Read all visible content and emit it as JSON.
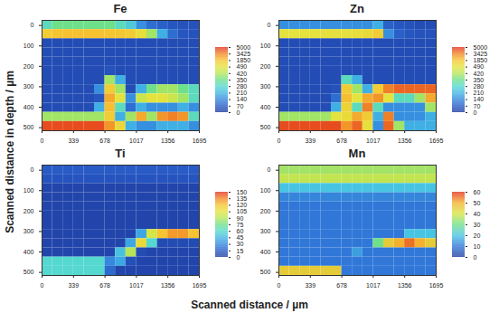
{
  "chart_data": {
    "type": "heatmap",
    "xlabel": "Scanned distance / µm",
    "ylabel": "Scanned distance in depth / µm",
    "xlim": [
      0,
      1695
    ],
    "ylim": [
      -25,
      515
    ],
    "xticks": [
      0,
      339,
      678,
      1017,
      1356,
      1695
    ],
    "yticks": [
      0,
      100,
      200,
      300,
      400,
      500
    ],
    "x_bins": [
      0,
      113,
      226,
      339,
      452,
      565,
      678,
      791,
      904,
      1017,
      1130,
      1243,
      1356,
      1469,
      1582,
      1695
    ],
    "y_bins": [
      -25,
      20,
      65,
      110,
      155,
      200,
      245,
      290,
      335,
      380,
      425,
      470,
      515
    ],
    "panels": [
      {
        "title": "Fe",
        "colorbar_ticks": [
          0,
          70,
          140,
          210,
          280,
          350,
          420,
          490,
          1850,
          3425,
          5000
        ],
        "cells": [
          [
            300,
            350,
            350,
            350,
            350,
            350,
            350,
            300,
            250,
            150,
            100,
            80,
            60,
            50,
            50
          ],
          [
            1500,
            1800,
            1900,
            1900,
            1900,
            1900,
            1800,
            1700,
            1500,
            700,
            400,
            200,
            100,
            60,
            50
          ],
          [
            40,
            40,
            40,
            40,
            40,
            40,
            40,
            40,
            40,
            40,
            40,
            40,
            40,
            40,
            40
          ],
          [
            40,
            40,
            40,
            40,
            40,
            40,
            40,
            40,
            40,
            40,
            40,
            40,
            40,
            40,
            40
          ],
          [
            40,
            40,
            40,
            40,
            40,
            40,
            40,
            40,
            40,
            40,
            40,
            40,
            40,
            40,
            40
          ],
          [
            40,
            40,
            40,
            40,
            40,
            40,
            50,
            40,
            40,
            40,
            40,
            40,
            40,
            40,
            40
          ],
          [
            40,
            40,
            40,
            40,
            40,
            40,
            400,
            200,
            40,
            40,
            40,
            40,
            40,
            40,
            40
          ],
          [
            40,
            40,
            40,
            40,
            40,
            150,
            1500,
            400,
            40,
            200,
            350,
            400,
            400,
            350,
            300
          ],
          [
            40,
            40,
            40,
            40,
            40,
            60,
            2500,
            500,
            150,
            450,
            500,
            500,
            450,
            400,
            300
          ],
          [
            40,
            40,
            40,
            40,
            40,
            200,
            2000,
            300,
            100,
            200,
            150,
            150,
            150,
            200,
            150
          ],
          [
            400,
            400,
            400,
            400,
            400,
            400,
            1500,
            200,
            400,
            2500,
            400,
            3000,
            3500,
            3000,
            300
          ],
          [
            4500,
            4500,
            4500,
            4500,
            4500,
            4500,
            3000,
            1000,
            200,
            150,
            150,
            200,
            200,
            200,
            150
          ]
        ]
      },
      {
        "title": "Zn",
        "colorbar_ticks": [
          0,
          70,
          140,
          210,
          280,
          350,
          420,
          490,
          1850,
          3425,
          5000
        ],
        "cells": [
          [
            150,
            150,
            150,
            150,
            150,
            150,
            150,
            150,
            150,
            200,
            80,
            60,
            50,
            40,
            40
          ],
          [
            500,
            500,
            550,
            550,
            600,
            600,
            600,
            700,
            900,
            1500,
            150,
            80,
            60,
            50,
            50
          ],
          [
            40,
            40,
            40,
            40,
            40,
            40,
            40,
            40,
            40,
            40,
            40,
            40,
            40,
            40,
            40
          ],
          [
            40,
            40,
            40,
            40,
            40,
            40,
            40,
            40,
            40,
            40,
            40,
            40,
            40,
            40,
            40
          ],
          [
            40,
            40,
            40,
            40,
            40,
            40,
            40,
            40,
            40,
            40,
            40,
            40,
            40,
            40,
            40
          ],
          [
            40,
            40,
            40,
            40,
            40,
            40,
            40,
            40,
            40,
            40,
            40,
            40,
            40,
            40,
            40
          ],
          [
            40,
            40,
            40,
            40,
            40,
            40,
            300,
            200,
            40,
            40,
            40,
            40,
            40,
            40,
            40
          ],
          [
            40,
            40,
            40,
            40,
            40,
            50,
            1500,
            400,
            200,
            1500,
            3500,
            4000,
            4000,
            4000,
            4000
          ],
          [
            40,
            40,
            40,
            40,
            40,
            100,
            2000,
            500,
            2500,
            3000,
            500,
            300,
            300,
            400,
            2500
          ],
          [
            40,
            40,
            40,
            40,
            40,
            200,
            1200,
            300,
            3500,
            300,
            150,
            150,
            150,
            150,
            400
          ],
          [
            400,
            400,
            400,
            400,
            400,
            500,
            900,
            2500,
            1500,
            200,
            3500,
            150,
            150,
            150,
            200
          ],
          [
            4500,
            4500,
            4500,
            4500,
            4500,
            4500,
            3000,
            4000,
            600,
            150,
            4000,
            400,
            200,
            200,
            200
          ]
        ]
      },
      {
        "title": "Ti",
        "colorbar_ticks": [
          0,
          15,
          30,
          45,
          60,
          75,
          90,
          105,
          120,
          135,
          150
        ],
        "cells": [
          [
            15,
            15,
            15,
            15,
            15,
            15,
            15,
            15,
            15,
            15,
            15,
            15,
            15,
            15,
            15
          ],
          [
            12,
            12,
            12,
            12,
            12,
            12,
            12,
            12,
            12,
            12,
            12,
            12,
            12,
            12,
            12
          ],
          [
            5,
            5,
            5,
            5,
            5,
            5,
            5,
            5,
            5,
            5,
            5,
            5,
            5,
            5,
            5
          ],
          [
            5,
            5,
            5,
            5,
            5,
            5,
            5,
            5,
            5,
            5,
            5,
            5,
            5,
            5,
            5
          ],
          [
            5,
            5,
            5,
            5,
            5,
            5,
            5,
            5,
            5,
            5,
            5,
            5,
            5,
            5,
            5
          ],
          [
            5,
            5,
            5,
            5,
            5,
            5,
            5,
            5,
            5,
            5,
            5,
            5,
            5,
            5,
            5
          ],
          [
            5,
            5,
            5,
            5,
            5,
            5,
            5,
            5,
            5,
            5,
            5,
            5,
            5,
            5,
            5
          ],
          [
            5,
            5,
            5,
            5,
            5,
            5,
            5,
            5,
            5,
            40,
            100,
            120,
            130,
            130,
            120
          ],
          [
            5,
            5,
            5,
            5,
            5,
            5,
            5,
            5,
            40,
            110,
            60,
            8,
            8,
            8,
            8
          ],
          [
            5,
            5,
            5,
            5,
            5,
            5,
            5,
            50,
            90,
            8,
            5,
            5,
            5,
            5,
            5
          ],
          [
            60,
            60,
            60,
            60,
            60,
            60,
            30,
            40,
            10,
            5,
            5,
            5,
            5,
            5,
            5
          ],
          [
            60,
            60,
            60,
            60,
            60,
            60,
            20,
            5,
            5,
            5,
            5,
            5,
            5,
            5,
            5
          ]
        ]
      },
      {
        "title": "Mn",
        "colorbar_ticks": [
          0,
          10,
          20,
          30,
          40,
          50,
          60
        ],
        "cells": [
          [
            35,
            35,
            35,
            35,
            35,
            35,
            35,
            35,
            35,
            35,
            35,
            35,
            35,
            35,
            35
          ],
          [
            38,
            38,
            38,
            38,
            38,
            38,
            38,
            38,
            38,
            38,
            38,
            38,
            38,
            38,
            38
          ],
          [
            20,
            20,
            20,
            20,
            20,
            20,
            20,
            20,
            20,
            20,
            20,
            20,
            20,
            20,
            20
          ],
          [
            12,
            12,
            12,
            12,
            12,
            12,
            12,
            12,
            12,
            12,
            12,
            12,
            12,
            12,
            12
          ],
          [
            10,
            10,
            10,
            10,
            10,
            10,
            10,
            10,
            10,
            10,
            10,
            10,
            10,
            10,
            10
          ],
          [
            10,
            10,
            10,
            10,
            10,
            10,
            10,
            10,
            10,
            10,
            10,
            10,
            10,
            10,
            10
          ],
          [
            10,
            10,
            10,
            10,
            10,
            10,
            10,
            10,
            10,
            10,
            10,
            10,
            10,
            10,
            10
          ],
          [
            10,
            10,
            10,
            10,
            10,
            10,
            10,
            10,
            10,
            10,
            10,
            10,
            20,
            20,
            20
          ],
          [
            10,
            10,
            10,
            10,
            10,
            10,
            10,
            10,
            10,
            30,
            45,
            50,
            55,
            50,
            45
          ],
          [
            10,
            10,
            10,
            10,
            10,
            10,
            10,
            15,
            10,
            10,
            10,
            10,
            10,
            10,
            10
          ],
          [
            10,
            10,
            10,
            10,
            10,
            10,
            10,
            10,
            10,
            10,
            10,
            10,
            10,
            10,
            10
          ],
          [
            45,
            45,
            45,
            45,
            45,
            45,
            10,
            10,
            10,
            10,
            10,
            10,
            10,
            10,
            10
          ]
        ]
      }
    ]
  }
}
